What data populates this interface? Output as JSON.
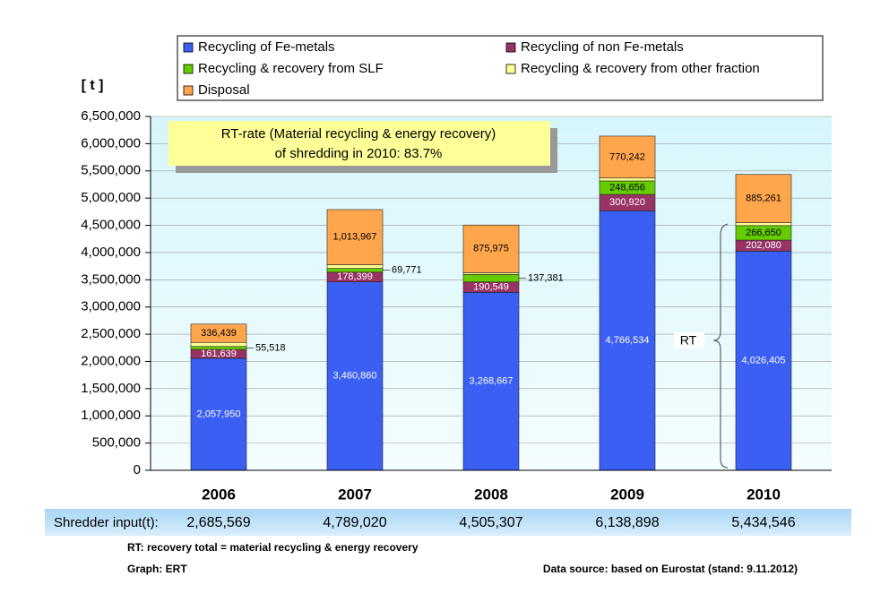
{
  "chart_data": {
    "type": "stacked_bar",
    "y_axis_label": "[ t ]",
    "categories": [
      "2006",
      "2007",
      "2008",
      "2009",
      "2010"
    ],
    "series": [
      {
        "name": "Recycling of Fe-metals",
        "color": "#3a5ff2",
        "values": [
          2057950,
          3460860,
          3268667,
          4766534,
          4026405
        ],
        "value_labels": [
          "2,057,950",
          "3,460,860",
          "3,268,667",
          "4,766,534",
          "4,026,405"
        ]
      },
      {
        "name": "Recycling of non Fe-metals",
        "color": "#993366",
        "values": [
          161639,
          178399,
          190549,
          300920,
          202080
        ],
        "value_labels": [
          "161,639",
          "178,399",
          "190,549",
          "300,920",
          "202,080"
        ]
      },
      {
        "name": "Recycling & recovery from SLF",
        "color": "#66cc00",
        "values": [
          55518,
          69771,
          137381,
          248656,
          266650
        ],
        "value_labels": [
          "55,518",
          "69,771",
          "137,381",
          "248,656",
          "266,650"
        ]
      },
      {
        "name": "Recycling & recovery from other fraction",
        "color": "#ffff99",
        "values": [
          74023,
          66023,
          32735,
          52546,
          54150
        ],
        "value_labels": [
          null,
          null,
          null,
          null,
          null
        ]
      },
      {
        "name": "Disposal",
        "color": "#ffa64d",
        "values": [
          336439,
          1013967,
          875975,
          770242,
          885261
        ],
        "value_labels": [
          "336,439",
          "1,013,967",
          "875,975",
          "770,242",
          "885,261"
        ]
      }
    ],
    "ylim": [
      0,
      6500000
    ],
    "yticks": [
      {
        "value": 0,
        "label": "0"
      },
      {
        "value": 500000,
        "label": "500,000"
      },
      {
        "value": 1000000,
        "label": "1,000,000"
      },
      {
        "value": 1500000,
        "label": "1,500,000"
      },
      {
        "value": 2000000,
        "label": "2,000,000"
      },
      {
        "value": 2500000,
        "label": "2,500,000"
      },
      {
        "value": 3000000,
        "label": "3,000,000"
      },
      {
        "value": 3500000,
        "label": "3,500,000"
      },
      {
        "value": 4000000,
        "label": "4,000,000"
      },
      {
        "value": 4500000,
        "label": "4,500,000"
      },
      {
        "value": 5000000,
        "label": "5,000,000"
      },
      {
        "value": 5500000,
        "label": "5,500,000"
      },
      {
        "value": 6000000,
        "label": "6,000,000"
      },
      {
        "value": 6500000,
        "label": "6,500,000"
      }
    ],
    "grid": true,
    "annotation": [
      "RT-rate (Material recycling & energy recovery)",
      "of shredding in 2010: 83.7%"
    ],
    "brace_label": "RT",
    "shredder_input": {
      "label": "Shredder input(t):",
      "cells": [
        "2,685,569",
        "4,789,020",
        "4,505,307",
        "6,138,898",
        "5,434,546"
      ]
    },
    "footnotes": [
      "RT: recovery total = material recycling & energy recovery",
      "Graph: ERT",
      "Data source: based on Eurostat (stand: 9.11.2012)"
    ]
  }
}
